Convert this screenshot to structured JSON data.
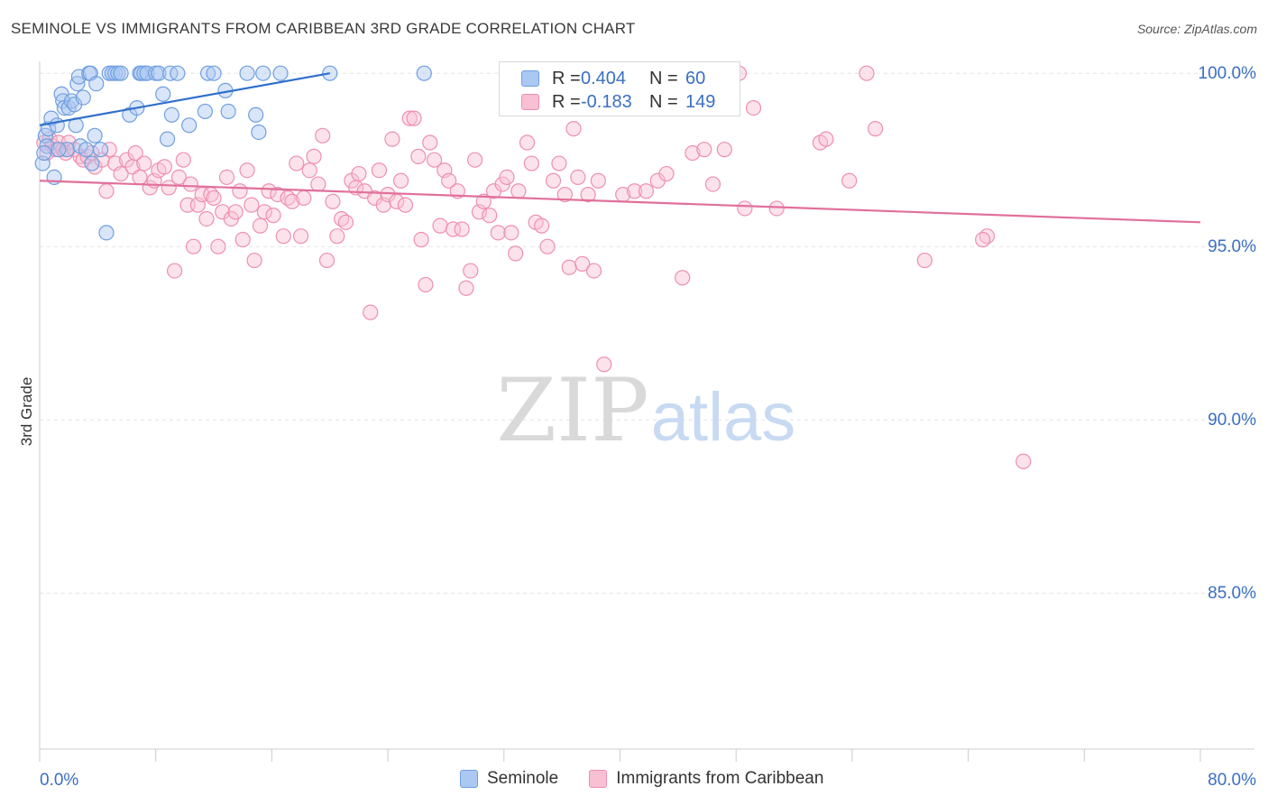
{
  "header": {
    "title": "SEMINOLE VS IMMIGRANTS FROM CARIBBEAN 3RD GRADE CORRELATION CHART",
    "source": "Source: ZipAtlas.com"
  },
  "watermark": {
    "part1": "ZIP",
    "part2": "atlas"
  },
  "legend": {
    "r_label": "R =",
    "n_label": "N =",
    "rows": [
      {
        "name": "Seminole",
        "r": "0.404",
        "n": "60",
        "fill": "#aac8f2",
        "stroke": "#6f9fe0"
      },
      {
        "name": "Immigrants from Caribbean",
        "r": "-0.183",
        "n": "149",
        "fill": "#f8c0d2",
        "stroke": "#ee8fb0"
      }
    ]
  },
  "chart_data": {
    "type": "scatter",
    "title": "SEMINOLE VS IMMIGRANTS FROM CARIBBEAN 3RD GRADE CORRELATION CHART",
    "xlabel": "",
    "ylabel": "3rd Grade",
    "xlim": [
      0,
      80
    ],
    "ylim": [
      80.5,
      100.5
    ],
    "x_tick_labels": [
      "0.0%",
      "80.0%"
    ],
    "y_ticks": [
      100,
      95,
      90,
      85
    ],
    "y_tick_labels": [
      "100.0%",
      "95.0%",
      "90.0%",
      "85.0%"
    ],
    "grid": true,
    "series": [
      {
        "name": "Seminole",
        "color": "#6f9fe0",
        "fill": "#aac8f2",
        "trend_color": "#2f6fcc",
        "trend": [
          [
            0,
            98.5
          ],
          [
            20,
            100.0
          ]
        ],
        "points": [
          [
            0.2,
            97.4
          ],
          [
            0.4,
            98.2
          ],
          [
            0.5,
            97.9
          ],
          [
            0.6,
            98.4
          ],
          [
            0.8,
            98.7
          ],
          [
            1.0,
            97.0
          ],
          [
            1.2,
            98.5
          ],
          [
            1.5,
            99.4
          ],
          [
            1.6,
            99.2
          ],
          [
            1.7,
            99.0
          ],
          [
            1.9,
            97.8
          ],
          [
            2.0,
            99.0
          ],
          [
            2.2,
            99.2
          ],
          [
            2.4,
            99.1
          ],
          [
            2.5,
            98.5
          ],
          [
            2.6,
            99.7
          ],
          [
            2.7,
            99.9
          ],
          [
            2.8,
            97.9
          ],
          [
            3.0,
            99.3
          ],
          [
            3.2,
            97.8
          ],
          [
            3.4,
            100.0
          ],
          [
            3.5,
            100.0
          ],
          [
            3.6,
            97.4
          ],
          [
            3.8,
            98.2
          ],
          [
            3.9,
            99.7
          ],
          [
            4.2,
            97.8
          ],
          [
            4.6,
            95.4
          ],
          [
            4.8,
            100.0
          ],
          [
            5.0,
            100.0
          ],
          [
            5.2,
            100.0
          ],
          [
            5.4,
            100.0
          ],
          [
            5.6,
            100.0
          ],
          [
            6.2,
            98.8
          ],
          [
            6.7,
            99.0
          ],
          [
            6.9,
            100.0
          ],
          [
            7.0,
            100.0
          ],
          [
            7.2,
            100.0
          ],
          [
            7.4,
            100.0
          ],
          [
            8.0,
            100.0
          ],
          [
            8.2,
            100.0
          ],
          [
            8.5,
            99.4
          ],
          [
            8.8,
            98.1
          ],
          [
            9.0,
            100.0
          ],
          [
            9.1,
            98.8
          ],
          [
            9.5,
            100.0
          ],
          [
            10.3,
            98.5
          ],
          [
            11.4,
            98.9
          ],
          [
            11.6,
            100.0
          ],
          [
            12.0,
            100.0
          ],
          [
            12.8,
            99.5
          ],
          [
            13.0,
            98.9
          ],
          [
            14.3,
            100.0
          ],
          [
            14.9,
            98.8
          ],
          [
            15.1,
            98.3
          ],
          [
            15.4,
            100.0
          ],
          [
            16.6,
            100.0
          ],
          [
            20.0,
            100.0
          ],
          [
            26.5,
            100.0
          ],
          [
            0.3,
            97.7
          ],
          [
            1.3,
            97.8
          ]
        ]
      },
      {
        "name": "Immigrants from Caribbean",
        "color": "#ee8fb0",
        "fill": "#f8c0d2",
        "trend_color": "#e0709a",
        "trend": [
          [
            0,
            96.9
          ],
          [
            80,
            95.7
          ]
        ],
        "points": [
          [
            0.3,
            98.0
          ],
          [
            0.5,
            97.7
          ],
          [
            0.7,
            98.1
          ],
          [
            0.9,
            97.9
          ],
          [
            1.1,
            97.8
          ],
          [
            1.3,
            98.0
          ],
          [
            1.6,
            97.8
          ],
          [
            1.8,
            97.7
          ],
          [
            2.0,
            98.0
          ],
          [
            2.4,
            97.8
          ],
          [
            2.8,
            97.6
          ],
          [
            3.0,
            97.5
          ],
          [
            3.3,
            97.6
          ],
          [
            3.6,
            97.7
          ],
          [
            3.8,
            97.3
          ],
          [
            4.3,
            97.5
          ],
          [
            4.6,
            96.6
          ],
          [
            4.8,
            97.8
          ],
          [
            5.2,
            97.4
          ],
          [
            5.6,
            97.1
          ],
          [
            6.0,
            97.5
          ],
          [
            6.4,
            97.3
          ],
          [
            6.6,
            97.7
          ],
          [
            6.9,
            97.0
          ],
          [
            7.2,
            97.4
          ],
          [
            7.6,
            96.7
          ],
          [
            7.9,
            96.9
          ],
          [
            8.2,
            97.2
          ],
          [
            8.6,
            97.3
          ],
          [
            8.9,
            96.7
          ],
          [
            9.3,
            94.3
          ],
          [
            9.6,
            97.0
          ],
          [
            9.9,
            97.5
          ],
          [
            10.2,
            96.2
          ],
          [
            10.4,
            96.8
          ],
          [
            10.6,
            95.0
          ],
          [
            10.9,
            96.2
          ],
          [
            11.2,
            96.5
          ],
          [
            11.5,
            95.8
          ],
          [
            11.8,
            96.5
          ],
          [
            12.0,
            96.4
          ],
          [
            12.3,
            95.0
          ],
          [
            12.6,
            96.0
          ],
          [
            12.9,
            97.0
          ],
          [
            13.2,
            95.8
          ],
          [
            13.5,
            96.0
          ],
          [
            13.8,
            96.6
          ],
          [
            14.0,
            95.2
          ],
          [
            14.3,
            97.2
          ],
          [
            14.6,
            96.2
          ],
          [
            14.8,
            94.6
          ],
          [
            15.2,
            95.6
          ],
          [
            15.5,
            96.0
          ],
          [
            15.8,
            96.6
          ],
          [
            16.1,
            95.9
          ],
          [
            16.4,
            96.5
          ],
          [
            16.8,
            95.3
          ],
          [
            17.1,
            96.4
          ],
          [
            17.4,
            96.3
          ],
          [
            17.7,
            97.4
          ],
          [
            18.0,
            95.3
          ],
          [
            18.2,
            96.4
          ],
          [
            18.6,
            97.2
          ],
          [
            18.9,
            97.6
          ],
          [
            19.2,
            96.8
          ],
          [
            19.5,
            98.2
          ],
          [
            19.8,
            94.6
          ],
          [
            20.2,
            96.3
          ],
          [
            20.5,
            95.3
          ],
          [
            20.8,
            95.8
          ],
          [
            21.1,
            95.7
          ],
          [
            21.5,
            96.9
          ],
          [
            21.8,
            96.7
          ],
          [
            22.0,
            97.1
          ],
          [
            22.4,
            96.6
          ],
          [
            22.8,
            93.1
          ],
          [
            23.1,
            96.4
          ],
          [
            23.4,
            97.2
          ],
          [
            23.7,
            96.2
          ],
          [
            24.0,
            96.5
          ],
          [
            24.3,
            98.1
          ],
          [
            24.6,
            96.3
          ],
          [
            24.9,
            96.9
          ],
          [
            25.2,
            96.2
          ],
          [
            25.5,
            98.7
          ],
          [
            25.8,
            98.7
          ],
          [
            26.1,
            97.6
          ],
          [
            26.3,
            95.2
          ],
          [
            26.6,
            93.9
          ],
          [
            26.9,
            98.0
          ],
          [
            27.2,
            97.5
          ],
          [
            27.6,
            95.6
          ],
          [
            27.9,
            97.2
          ],
          [
            28.2,
            96.9
          ],
          [
            28.5,
            95.5
          ],
          [
            28.8,
            96.6
          ],
          [
            29.1,
            95.5
          ],
          [
            29.4,
            93.8
          ],
          [
            29.7,
            94.3
          ],
          [
            30.0,
            97.5
          ],
          [
            30.3,
            96.0
          ],
          [
            30.6,
            96.3
          ],
          [
            31.0,
            95.9
          ],
          [
            31.3,
            96.6
          ],
          [
            31.6,
            95.4
          ],
          [
            31.9,
            96.8
          ],
          [
            32.2,
            97.0
          ],
          [
            32.5,
            95.4
          ],
          [
            32.8,
            94.8
          ],
          [
            33.0,
            96.6
          ],
          [
            33.6,
            98.0
          ],
          [
            33.9,
            97.4
          ],
          [
            34.2,
            95.7
          ],
          [
            34.6,
            95.6
          ],
          [
            35.0,
            95.0
          ],
          [
            35.4,
            96.9
          ],
          [
            35.8,
            97.4
          ],
          [
            36.2,
            96.5
          ],
          [
            36.5,
            94.4
          ],
          [
            36.8,
            98.4
          ],
          [
            37.1,
            97.0
          ],
          [
            37.4,
            94.5
          ],
          [
            37.8,
            96.5
          ],
          [
            38.2,
            94.3
          ],
          [
            38.5,
            96.9
          ],
          [
            38.9,
            91.6
          ],
          [
            40.2,
            96.5
          ],
          [
            41.0,
            96.6
          ],
          [
            41.8,
            96.6
          ],
          [
            42.6,
            96.9
          ],
          [
            43.2,
            97.1
          ],
          [
            44.3,
            94.1
          ],
          [
            45.0,
            97.7
          ],
          [
            45.8,
            97.8
          ],
          [
            46.4,
            96.8
          ],
          [
            47.2,
            97.8
          ],
          [
            48.6,
            96.1
          ],
          [
            49.2,
            99.0
          ],
          [
            50.8,
            96.1
          ],
          [
            53.8,
            98.0
          ],
          [
            55.8,
            96.9
          ],
          [
            57.6,
            98.4
          ],
          [
            61.0,
            94.6
          ],
          [
            65.3,
            95.3
          ],
          [
            67.8,
            88.8
          ],
          [
            48.2,
            100.0
          ],
          [
            57.0,
            100.0
          ],
          [
            54.2,
            98.1
          ],
          [
            65.0,
            95.2
          ]
        ]
      }
    ]
  }
}
